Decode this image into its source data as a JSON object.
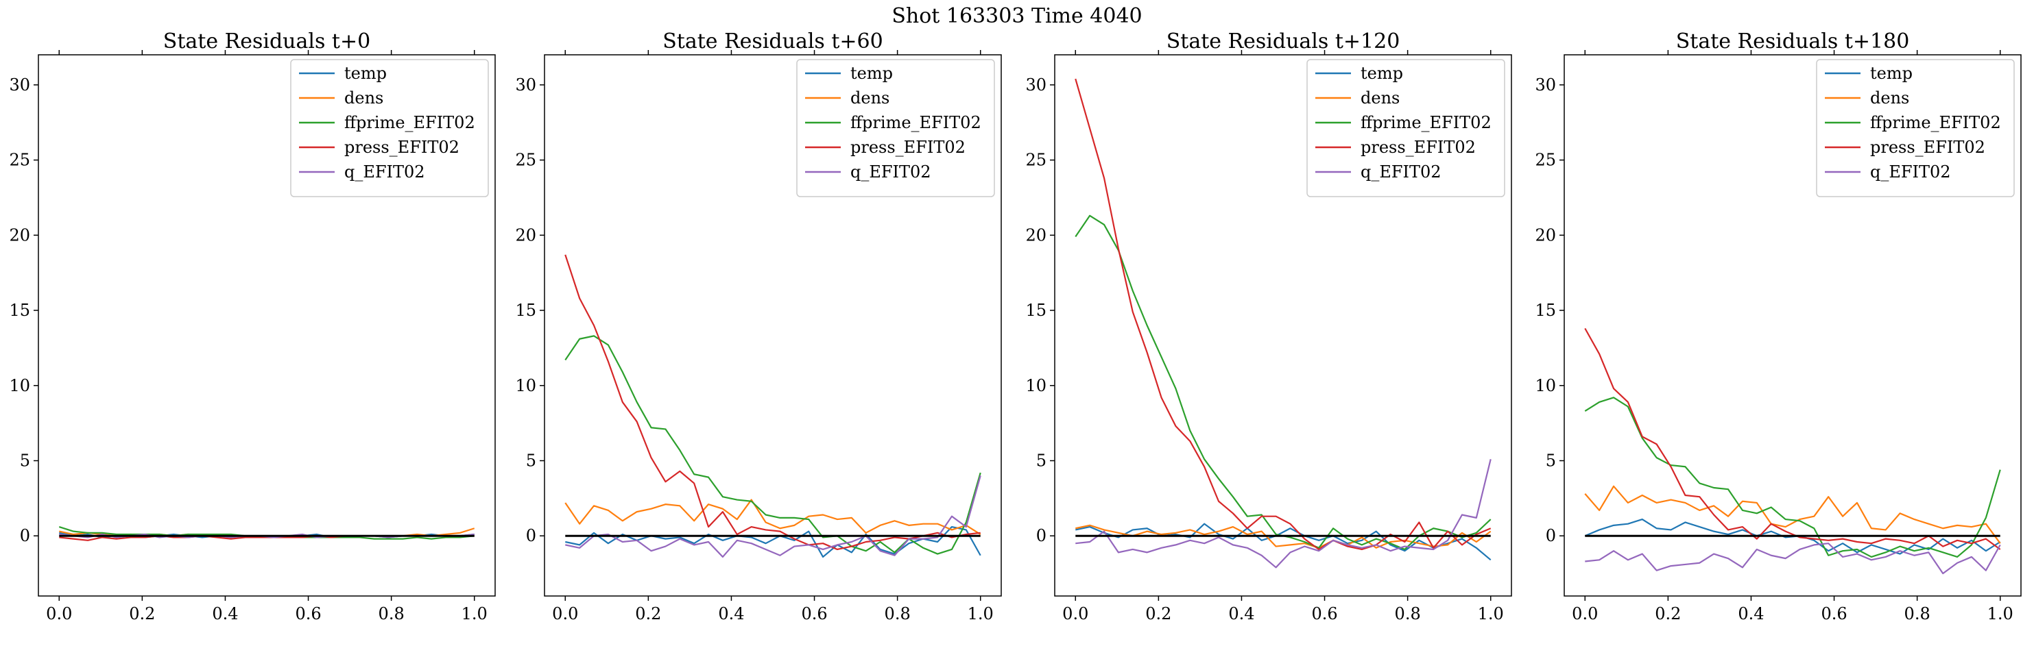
{
  "suptitle": "Shot 163303   Time 4040",
  "colors": {
    "temp": "#1f77b4",
    "dens": "#ff7f0e",
    "ffprime_EFIT02": "#2ca02c",
    "press_EFIT02": "#d62728",
    "q_EFIT02": "#9467bd",
    "zero_line": "#000000"
  },
  "chart_data": [
    {
      "type": "line",
      "title": "State Residuals t+0",
      "xlim": [
        -0.05,
        1.05
      ],
      "ylim": [
        -4,
        32
      ],
      "xticks": [
        "0.0",
        "0.2",
        "0.4",
        "0.6",
        "0.8",
        "1.0"
      ],
      "yticks": [
        "0",
        "5",
        "10",
        "15",
        "20",
        "25",
        "30"
      ],
      "legend_position": "upper-right",
      "zero_line": true,
      "x": [
        0.0,
        0.0345,
        0.069,
        0.1034,
        0.1379,
        0.1724,
        0.2069,
        0.2414,
        0.2759,
        0.3103,
        0.3448,
        0.3793,
        0.4138,
        0.4483,
        0.4828,
        0.5172,
        0.5517,
        0.5862,
        0.6207,
        0.6552,
        0.6897,
        0.7241,
        0.7586,
        0.7931,
        0.8276,
        0.8621,
        0.8966,
        0.931,
        0.9655,
        1.0
      ],
      "series": [
        {
          "name": "temp",
          "values": [
            0.2,
            0.0,
            0.1,
            -0.1,
            0.0,
            0.0,
            -0.1,
            0.0,
            0.1,
            0.0,
            -0.1,
            0.0,
            0.0,
            -0.1,
            0.0,
            -0.1,
            0.0,
            0.0,
            0.1,
            -0.1,
            0.0,
            0.0,
            0.0,
            -0.1,
            0.0,
            0.0,
            0.1,
            0.0,
            0.0,
            0.1
          ]
        },
        {
          "name": "dens",
          "values": [
            0.3,
            0.1,
            0.2,
            0.1,
            0.0,
            0.1,
            0.0,
            0.1,
            0.0,
            0.1,
            0.0,
            0.0,
            -0.1,
            0.0,
            0.0,
            -0.1,
            0.0,
            -0.1,
            0.0,
            0.0,
            -0.1,
            0.0,
            0.0,
            0.0,
            0.0,
            0.1,
            0.0,
            0.1,
            0.2,
            0.5
          ]
        },
        {
          "name": "ffprime_EFIT02",
          "values": [
            0.6,
            0.3,
            0.2,
            0.2,
            0.1,
            0.1,
            0.1,
            0.1,
            0.0,
            0.1,
            0.1,
            0.1,
            0.1,
            0.0,
            0.0,
            -0.1,
            -0.1,
            -0.1,
            -0.1,
            -0.1,
            -0.1,
            -0.1,
            -0.2,
            -0.2,
            -0.2,
            -0.1,
            -0.2,
            -0.1,
            -0.1,
            0.0
          ]
        },
        {
          "name": "press_EFIT02",
          "values": [
            -0.1,
            -0.2,
            -0.3,
            -0.1,
            -0.2,
            -0.1,
            -0.1,
            0.0,
            -0.1,
            -0.1,
            0.0,
            -0.1,
            -0.2,
            -0.1,
            -0.1,
            -0.1,
            -0.1,
            -0.1,
            0.0,
            -0.1,
            0.0,
            0.0,
            0.0,
            0.0,
            0.0,
            0.0,
            0.0,
            0.0,
            0.0,
            0.0
          ]
        },
        {
          "name": "q_EFIT02",
          "values": [
            0.1,
            0.0,
            -0.1,
            0.1,
            -0.1,
            0.0,
            0.1,
            -0.1,
            0.0,
            -0.1,
            0.0,
            0.0,
            -0.1,
            0.0,
            0.0,
            -0.1,
            0.0,
            0.1,
            -0.1,
            0.0,
            0.0,
            0.0,
            0.0,
            -0.1,
            0.0,
            0.0,
            0.0,
            0.0,
            0.0,
            0.1
          ]
        }
      ]
    },
    {
      "type": "line",
      "title": "State Residuals t+60",
      "xlim": [
        -0.05,
        1.05
      ],
      "ylim": [
        -4,
        32
      ],
      "xticks": [
        "0.0",
        "0.2",
        "0.4",
        "0.6",
        "0.8",
        "1.0"
      ],
      "yticks": [
        "0",
        "5",
        "10",
        "15",
        "20",
        "25",
        "30"
      ],
      "legend_position": "upper-right",
      "zero_line": true,
      "x": [
        0.0,
        0.0345,
        0.069,
        0.1034,
        0.1379,
        0.1724,
        0.2069,
        0.2414,
        0.2759,
        0.3103,
        0.3448,
        0.3793,
        0.4138,
        0.4483,
        0.4828,
        0.5172,
        0.5517,
        0.5862,
        0.6207,
        0.6552,
        0.6897,
        0.7241,
        0.7586,
        0.7931,
        0.8276,
        0.8621,
        0.8966,
        0.931,
        0.9655,
        1.0
      ],
      "series": [
        {
          "name": "temp",
          "values": [
            -0.4,
            -0.6,
            0.2,
            -0.5,
            0.1,
            -0.3,
            0.0,
            -0.2,
            -0.1,
            -0.5,
            0.1,
            -0.3,
            0.0,
            -0.1,
            -0.5,
            0.0,
            -0.3,
            0.3,
            -1.4,
            -0.6,
            -1.1,
            0.1,
            -0.9,
            -1.2,
            -0.5,
            -0.2,
            -0.4,
            0.6,
            0.4,
            -1.3
          ]
        },
        {
          "name": "dens",
          "values": [
            2.2,
            0.8,
            2.0,
            1.7,
            1.0,
            1.6,
            1.8,
            2.1,
            2.0,
            1.0,
            2.1,
            1.8,
            1.1,
            2.4,
            0.9,
            0.5,
            0.7,
            1.3,
            1.4,
            1.1,
            1.2,
            0.2,
            0.7,
            1.0,
            0.7,
            0.8,
            0.8,
            0.4,
            0.7,
            0.1
          ]
        },
        {
          "name": "ffprime_EFIT02",
          "values": [
            11.7,
            13.1,
            13.3,
            12.7,
            10.9,
            8.9,
            7.2,
            7.1,
            5.7,
            4.1,
            3.9,
            2.6,
            2.4,
            2.3,
            1.4,
            1.2,
            1.2,
            1.1,
            -0.1,
            0.0,
            -0.7,
            -1.0,
            -0.4,
            -1.1,
            -0.2,
            -0.8,
            -1.2,
            -0.9,
            0.9,
            4.2
          ]
        },
        {
          "name": "press_EFIT02",
          "values": [
            18.7,
            15.8,
            14.0,
            11.6,
            8.9,
            7.6,
            5.2,
            3.6,
            4.3,
            3.5,
            0.6,
            1.6,
            0.1,
            0.6,
            0.4,
            0.3,
            -0.2,
            -0.6,
            -0.5,
            -0.9,
            -0.7,
            -0.4,
            -0.3,
            -0.1,
            -0.2,
            0.0,
            0.2,
            -0.1,
            0.1,
            0.2
          ]
        },
        {
          "name": "q_EFIT02",
          "values": [
            -0.6,
            -0.8,
            0.0,
            0.1,
            -0.4,
            -0.3,
            -1.0,
            -0.7,
            -0.2,
            -0.6,
            -0.4,
            -1.4,
            -0.3,
            -0.5,
            -0.9,
            -1.3,
            -0.7,
            -0.6,
            -0.9,
            -0.6,
            -0.4,
            0.0,
            -1.0,
            -1.3,
            -0.2,
            -0.2,
            -0.1,
            1.3,
            0.6,
            4.0
          ]
        }
      ]
    },
    {
      "type": "line",
      "title": "State Residuals t+120",
      "xlim": [
        -0.05,
        1.05
      ],
      "ylim": [
        -4,
        32
      ],
      "xticks": [
        "0.0",
        "0.2",
        "0.4",
        "0.6",
        "0.8",
        "1.0"
      ],
      "yticks": [
        "0",
        "5",
        "10",
        "15",
        "20",
        "25",
        "30"
      ],
      "legend_position": "upper-right",
      "zero_line": true,
      "x": [
        0.0,
        0.0345,
        0.069,
        0.1034,
        0.1379,
        0.1724,
        0.2069,
        0.2414,
        0.2759,
        0.3103,
        0.3448,
        0.3793,
        0.4138,
        0.4483,
        0.4828,
        0.5172,
        0.5517,
        0.5862,
        0.6207,
        0.6552,
        0.6897,
        0.7241,
        0.7586,
        0.7931,
        0.8276,
        0.8621,
        0.8966,
        0.931,
        0.9655,
        1.0
      ],
      "series": [
        {
          "name": "temp",
          "values": [
            0.4,
            0.6,
            0.2,
            -0.1,
            0.4,
            0.5,
            0.0,
            0.1,
            -0.1,
            0.8,
            0.1,
            -0.2,
            0.5,
            -0.3,
            0.0,
            0.5,
            0.0,
            -0.3,
            0.0,
            -0.5,
            -0.3,
            0.3,
            -0.6,
            -1.0,
            -0.3,
            -0.8,
            -0.5,
            -0.2,
            -0.8,
            -1.6
          ]
        },
        {
          "name": "dens",
          "values": [
            0.5,
            0.7,
            0.4,
            0.2,
            0.0,
            0.3,
            0.1,
            0.2,
            0.4,
            0.1,
            0.3,
            0.6,
            0.1,
            0.3,
            -0.7,
            -0.6,
            -0.5,
            -0.8,
            -0.3,
            -0.6,
            -0.1,
            -0.8,
            -0.4,
            -0.3,
            -0.5,
            -0.7,
            -0.6,
            0.2,
            -0.4,
            0.3
          ]
        },
        {
          "name": "ffprime_EFIT02",
          "values": [
            19.9,
            21.3,
            20.7,
            19.0,
            16.3,
            14.0,
            11.9,
            9.8,
            7.0,
            5.1,
            3.8,
            2.6,
            1.3,
            1.4,
            0.1,
            -0.1,
            -0.4,
            -0.8,
            0.5,
            -0.2,
            -0.6,
            -0.2,
            -0.5,
            -0.9,
            0.0,
            0.5,
            0.3,
            -0.1,
            0.2,
            1.1
          ]
        },
        {
          "name": "press_EFIT02",
          "values": [
            30.4,
            27.1,
            23.8,
            19.1,
            14.9,
            12.2,
            9.2,
            7.3,
            6.3,
            4.6,
            2.3,
            1.5,
            0.5,
            1.3,
            1.3,
            0.8,
            -0.2,
            -0.9,
            -0.3,
            -0.7,
            -0.9,
            -0.6,
            0.1,
            -0.4,
            0.9,
            -0.8,
            0.3,
            -0.6,
            0.1,
            0.5
          ]
        },
        {
          "name": "q_EFIT02",
          "values": [
            -0.5,
            -0.4,
            0.3,
            -1.1,
            -0.9,
            -1.1,
            -0.8,
            -0.6,
            -0.3,
            -0.5,
            -0.1,
            -0.6,
            -0.8,
            -1.3,
            -2.1,
            -1.1,
            -0.7,
            -1.0,
            -0.3,
            -0.6,
            -0.8,
            -0.6,
            -1.0,
            -0.7,
            -0.8,
            -0.9,
            -0.3,
            1.4,
            1.2,
            5.1
          ]
        }
      ]
    },
    {
      "type": "line",
      "title": "State Residuals t+180",
      "xlim": [
        -0.05,
        1.05
      ],
      "ylim": [
        -4,
        32
      ],
      "xticks": [
        "0.0",
        "0.2",
        "0.4",
        "0.6",
        "0.8",
        "1.0"
      ],
      "yticks": [
        "0",
        "5",
        "10",
        "15",
        "20",
        "25",
        "30"
      ],
      "legend_position": "upper-right",
      "zero_line": true,
      "x": [
        0.0,
        0.0345,
        0.069,
        0.1034,
        0.1379,
        0.1724,
        0.2069,
        0.2414,
        0.2759,
        0.3103,
        0.3448,
        0.3793,
        0.4138,
        0.4483,
        0.4828,
        0.5172,
        0.5517,
        0.5862,
        0.6207,
        0.6552,
        0.6897,
        0.7241,
        0.7586,
        0.7931,
        0.8276,
        0.8621,
        0.8966,
        0.931,
        0.9655,
        1.0
      ],
      "series": [
        {
          "name": "temp",
          "values": [
            0.0,
            0.4,
            0.7,
            0.8,
            1.1,
            0.5,
            0.4,
            0.9,
            0.6,
            0.3,
            0.1,
            0.4,
            0.0,
            0.3,
            -0.1,
            0.0,
            -0.3,
            -1.0,
            -0.5,
            -1.1,
            -0.6,
            -0.9,
            -1.2,
            -0.6,
            -0.9,
            -0.2,
            -0.8,
            -0.3,
            -1.0,
            -0.4
          ]
        },
        {
          "name": "dens",
          "values": [
            2.8,
            1.7,
            3.3,
            2.2,
            2.7,
            2.2,
            2.4,
            2.2,
            1.7,
            2.0,
            1.3,
            2.3,
            2.2,
            0.8,
            0.6,
            1.1,
            1.3,
            2.6,
            1.3,
            2.2,
            0.5,
            0.4,
            1.5,
            1.1,
            0.8,
            0.5,
            0.7,
            0.6,
            0.8,
            -0.5
          ]
        },
        {
          "name": "ffprime_EFIT02",
          "values": [
            8.3,
            8.9,
            9.2,
            8.6,
            6.5,
            5.2,
            4.7,
            4.6,
            3.5,
            3.2,
            3.1,
            1.7,
            1.5,
            1.9,
            1.1,
            1.0,
            0.5,
            -1.3,
            -1.0,
            -0.9,
            -1.4,
            -1.1,
            -0.7,
            -1.0,
            -0.8,
            -1.1,
            -1.4,
            -0.6,
            1.2,
            4.4
          ]
        },
        {
          "name": "press_EFIT02",
          "values": [
            13.8,
            12.1,
            9.8,
            8.9,
            6.6,
            6.1,
            4.6,
            2.7,
            2.6,
            1.4,
            0.4,
            0.6,
            -0.2,
            0.8,
            0.3,
            -0.1,
            -0.2,
            -0.3,
            -0.2,
            -0.4,
            -0.5,
            -0.2,
            -0.3,
            -0.5,
            0.0,
            -0.7,
            -0.3,
            -0.5,
            -0.2,
            -0.9
          ]
        },
        {
          "name": "q_EFIT02",
          "values": [
            -1.7,
            -1.6,
            -1.0,
            -1.6,
            -1.2,
            -2.3,
            -2.0,
            -1.9,
            -1.8,
            -1.2,
            -1.5,
            -2.1,
            -0.9,
            -1.3,
            -1.5,
            -0.9,
            -0.6,
            -0.5,
            -1.4,
            -1.2,
            -1.6,
            -1.4,
            -1.0,
            -1.3,
            -1.1,
            -2.5,
            -1.8,
            -1.4,
            -2.3,
            -0.6
          ]
        }
      ]
    }
  ]
}
